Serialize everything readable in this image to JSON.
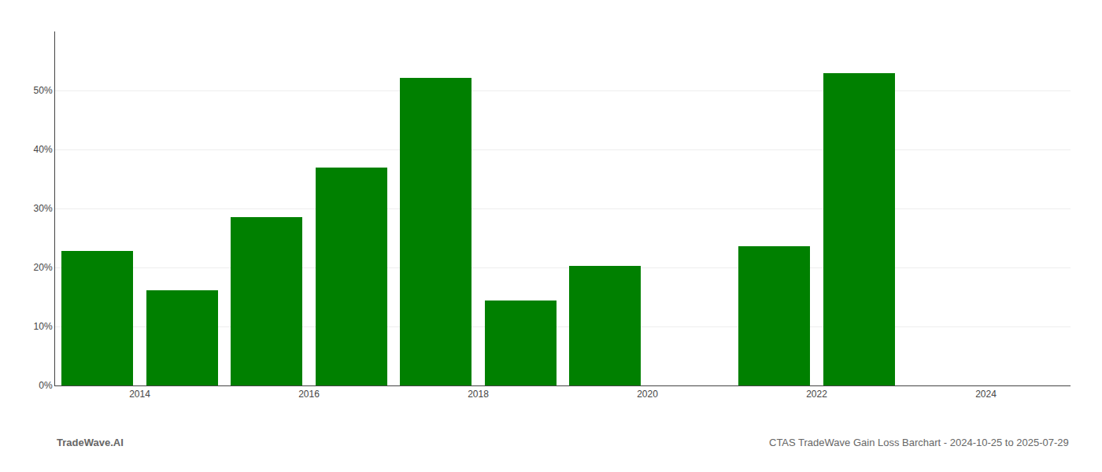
{
  "chart_data": {
    "type": "bar",
    "x": [
      2013.5,
      2014.5,
      2015.5,
      2016.5,
      2017.5,
      2018.5,
      2019.5,
      2020.5,
      2021.5,
      2022.5,
      2023.5
    ],
    "values": [
      0.228,
      0.161,
      0.285,
      0.369,
      0.521,
      0.144,
      0.203,
      0.0,
      0.236,
      0.53,
      0.0
    ],
    "color": "#008000",
    "xlim": [
      2013.0,
      2025.0
    ],
    "xticks": [
      2014,
      2016,
      2018,
      2020,
      2022,
      2024
    ],
    "ylim": [
      0,
      0.6
    ],
    "yticks": [
      {
        "value": 0.0,
        "label": "0%"
      },
      {
        "value": 0.1,
        "label": "10%"
      },
      {
        "value": 0.2,
        "label": "20%"
      },
      {
        "value": 0.3,
        "label": "30%"
      },
      {
        "value": 0.4,
        "label": "40%"
      },
      {
        "value": 0.5,
        "label": "50%"
      }
    ],
    "grid": true,
    "annotations": [
      "TradeWave.AI",
      "CTAS TradeWave Gain Loss Barchart - 2024-10-25 to 2025-07-29"
    ]
  }
}
